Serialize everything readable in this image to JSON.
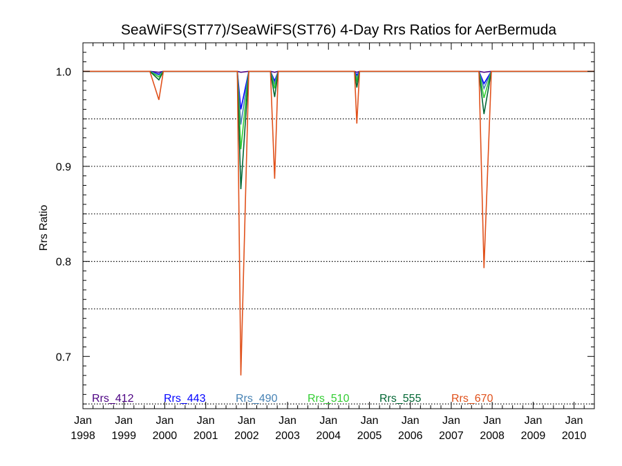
{
  "chart_data": {
    "type": "line",
    "title": "SeaWiFS(ST77)/SeaWiFS(ST76) 4-Day Rrs Ratios for AerBermuda",
    "xlabel": "",
    "ylabel": "Rrs Ratio",
    "xlim": [
      "1998-01-01",
      "2010-07-01"
    ],
    "ylim": [
      0.645,
      1.03
    ],
    "grid": "horizontal-dotted",
    "y_ticks": [
      {
        "value": 0.7,
        "label": "0.7"
      },
      {
        "value": 0.8,
        "label": "0.8"
      },
      {
        "value": 0.9,
        "label": "0.9"
      },
      {
        "value": 1.0,
        "label": "1.0"
      }
    ],
    "y_gridlines": [
      0.65,
      0.75,
      0.8,
      0.85,
      0.9,
      0.95
    ],
    "x_ticks": [
      {
        "date": "1998-01-01",
        "line1": "Jan",
        "line2": "1998"
      },
      {
        "date": "1999-01-01",
        "line1": "Jan",
        "line2": "1999"
      },
      {
        "date": "2000-01-01",
        "line1": "Jan",
        "line2": "2000"
      },
      {
        "date": "2001-01-01",
        "line1": "Jan",
        "line2": "2001"
      },
      {
        "date": "2002-01-01",
        "line1": "Jan",
        "line2": "2002"
      },
      {
        "date": "2003-01-01",
        "line1": "Jan",
        "line2": "2003"
      },
      {
        "date": "2004-01-01",
        "line1": "Jan",
        "line2": "2004"
      },
      {
        "date": "2005-01-01",
        "line1": "Jan",
        "line2": "2005"
      },
      {
        "date": "2006-01-01",
        "line1": "Jan",
        "line2": "2006"
      },
      {
        "date": "2007-01-01",
        "line1": "Jan",
        "line2": "2007"
      },
      {
        "date": "2008-01-01",
        "line1": "Jan",
        "line2": "2008"
      },
      {
        "date": "2009-01-01",
        "line1": "Jan",
        "line2": "2009"
      },
      {
        "date": "2010-01-01",
        "line1": "Jan",
        "line2": "2010"
      }
    ],
    "legend_placement": "bottom",
    "series": [
      {
        "name": "Rrs_412",
        "color": "#4B0082",
        "points": [
          [
            "1998-01-01",
            1.0
          ],
          [
            "1999-08-21",
            1.0
          ],
          [
            "1999-11-10",
            0.999
          ],
          [
            "1999-12-20",
            1.0
          ],
          [
            "2001-10-10",
            1.0
          ],
          [
            "2001-11-10",
            0.999
          ],
          [
            "2002-01-20",
            1.0
          ],
          [
            "2002-08-01",
            1.0
          ],
          [
            "2002-09-08",
            0.999
          ],
          [
            "2002-10-10",
            1.0
          ],
          [
            "2004-08-20",
            1.0
          ],
          [
            "2004-09-10",
            0.999
          ],
          [
            "2004-10-05",
            1.0
          ],
          [
            "2007-09-05",
            1.0
          ],
          [
            "2007-10-20",
            0.999
          ],
          [
            "2007-12-25",
            1.0
          ],
          [
            "2010-07-01",
            1.0
          ]
        ]
      },
      {
        "name": "Rrs_443",
        "color": "#0000FF",
        "points": [
          [
            "1998-01-01",
            1.0
          ],
          [
            "1999-08-21",
            1.0
          ],
          [
            "1999-11-10",
            0.997
          ],
          [
            "1999-12-20",
            1.0
          ],
          [
            "2001-10-10",
            1.0
          ],
          [
            "2001-11-10",
            0.96
          ],
          [
            "2002-01-20",
            1.0
          ],
          [
            "2002-08-01",
            1.0
          ],
          [
            "2002-09-08",
            0.99
          ],
          [
            "2002-10-10",
            1.0
          ],
          [
            "2004-08-20",
            1.0
          ],
          [
            "2004-09-10",
            0.996
          ],
          [
            "2004-10-05",
            1.0
          ],
          [
            "2007-09-05",
            1.0
          ],
          [
            "2007-10-20",
            0.987
          ],
          [
            "2007-12-25",
            1.0
          ],
          [
            "2010-07-01",
            1.0
          ]
        ]
      },
      {
        "name": "Rrs_490",
        "color": "#4682B4",
        "points": [
          [
            "1998-01-01",
            1.0
          ],
          [
            "1999-08-21",
            1.0
          ],
          [
            "1999-11-10",
            0.996
          ],
          [
            "1999-12-20",
            1.0
          ],
          [
            "2001-10-10",
            1.0
          ],
          [
            "2001-11-10",
            0.944
          ],
          [
            "2002-01-20",
            1.0
          ],
          [
            "2002-08-01",
            1.0
          ],
          [
            "2002-09-08",
            0.987
          ],
          [
            "2002-10-10",
            1.0
          ],
          [
            "2004-08-20",
            1.0
          ],
          [
            "2004-09-10",
            0.993
          ],
          [
            "2004-10-05",
            1.0
          ],
          [
            "2007-09-05",
            1.0
          ],
          [
            "2007-10-20",
            0.982
          ],
          [
            "2007-12-25",
            1.0
          ],
          [
            "2010-07-01",
            1.0
          ]
        ]
      },
      {
        "name": "Rrs_510",
        "color": "#32CD32",
        "points": [
          [
            "1998-01-01",
            1.0
          ],
          [
            "1999-08-21",
            1.0
          ],
          [
            "1999-11-10",
            0.994
          ],
          [
            "1999-12-20",
            1.0
          ],
          [
            "2001-10-10",
            1.0
          ],
          [
            "2001-11-10",
            0.918
          ],
          [
            "2002-01-20",
            1.0
          ],
          [
            "2002-08-01",
            1.0
          ],
          [
            "2002-09-08",
            0.982
          ],
          [
            "2002-10-10",
            1.0
          ],
          [
            "2004-08-20",
            1.0
          ],
          [
            "2004-09-10",
            0.99
          ],
          [
            "2004-10-05",
            1.0
          ],
          [
            "2007-09-05",
            1.0
          ],
          [
            "2007-10-20",
            0.972
          ],
          [
            "2007-12-25",
            1.0
          ],
          [
            "2010-07-01",
            1.0
          ]
        ]
      },
      {
        "name": "Rrs_555",
        "color": "#006633",
        "points": [
          [
            "1998-01-01",
            1.0
          ],
          [
            "1999-08-21",
            1.0
          ],
          [
            "1999-11-10",
            0.991
          ],
          [
            "1999-12-20",
            1.0
          ],
          [
            "2001-10-10",
            1.0
          ],
          [
            "2001-11-10",
            0.876
          ],
          [
            "2002-01-20",
            1.0
          ],
          [
            "2002-08-01",
            1.0
          ],
          [
            "2002-09-08",
            0.973
          ],
          [
            "2002-10-10",
            1.0
          ],
          [
            "2004-08-20",
            1.0
          ],
          [
            "2004-09-10",
            0.983
          ],
          [
            "2004-10-05",
            1.0
          ],
          [
            "2007-09-05",
            1.0
          ],
          [
            "2007-10-20",
            0.955
          ],
          [
            "2007-12-25",
            1.0
          ],
          [
            "2010-07-01",
            1.0
          ]
        ]
      },
      {
        "name": "Rrs_670",
        "color": "#E0501A",
        "points": [
          [
            "1998-01-01",
            1.0
          ],
          [
            "1999-08-21",
            1.0
          ],
          [
            "1999-11-10",
            0.97
          ],
          [
            "1999-12-20",
            1.0
          ],
          [
            "2001-10-10",
            1.0
          ],
          [
            "2001-11-10",
            0.68
          ],
          [
            "2002-01-20",
            1.0
          ],
          [
            "2002-08-01",
            1.0
          ],
          [
            "2002-09-08",
            0.887
          ],
          [
            "2002-10-10",
            1.0
          ],
          [
            "2004-08-20",
            1.0
          ],
          [
            "2004-09-10",
            0.945
          ],
          [
            "2004-10-05",
            1.0
          ],
          [
            "2007-09-05",
            1.0
          ],
          [
            "2007-10-20",
            0.793
          ],
          [
            "2007-12-25",
            1.0
          ],
          [
            "2010-07-01",
            1.0
          ]
        ]
      }
    ]
  }
}
